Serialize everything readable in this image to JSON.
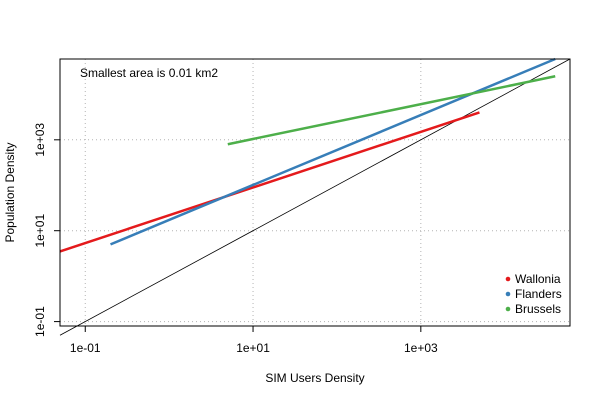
{
  "chart_data": {
    "type": "line",
    "title": "",
    "xlabel": "SIM Users Density",
    "ylabel": "Population Density",
    "x_scale": "log10",
    "y_scale": "log10",
    "xlim": [
      0.05,
      60000
    ],
    "ylim": [
      0.08,
      60000
    ],
    "x_ticks": [
      {
        "value": 0.1,
        "label": "1e-01"
      },
      {
        "value": 10,
        "label": "1e+01"
      },
      {
        "value": 1000,
        "label": "1e+03"
      }
    ],
    "y_ticks": [
      {
        "value": 0.1,
        "label": "1e-01"
      },
      {
        "value": 10,
        "label": "1e+01"
      },
      {
        "value": 1000,
        "label": "1e+03"
      }
    ],
    "grid": true,
    "annotation": "Smallest area is 0.01 km2",
    "legend_position": "bottom-right",
    "reference_line": {
      "from": [
        0.05,
        0.05
      ],
      "to": [
        60000,
        60000
      ],
      "color": "#000000"
    },
    "series": [
      {
        "name": "Wallonia",
        "color": "#e41a1c",
        "x": [
          0.05,
          5000
        ],
        "y": [
          3.5,
          4000
        ]
      },
      {
        "name": "Flanders",
        "color": "#377eb8",
        "x": [
          0.2,
          40000
        ],
        "y": [
          5,
          60000
        ]
      },
      {
        "name": "Brussels",
        "color": "#4daf4a",
        "x": [
          5,
          40000
        ],
        "y": [
          800,
          25000
        ]
      }
    ]
  }
}
